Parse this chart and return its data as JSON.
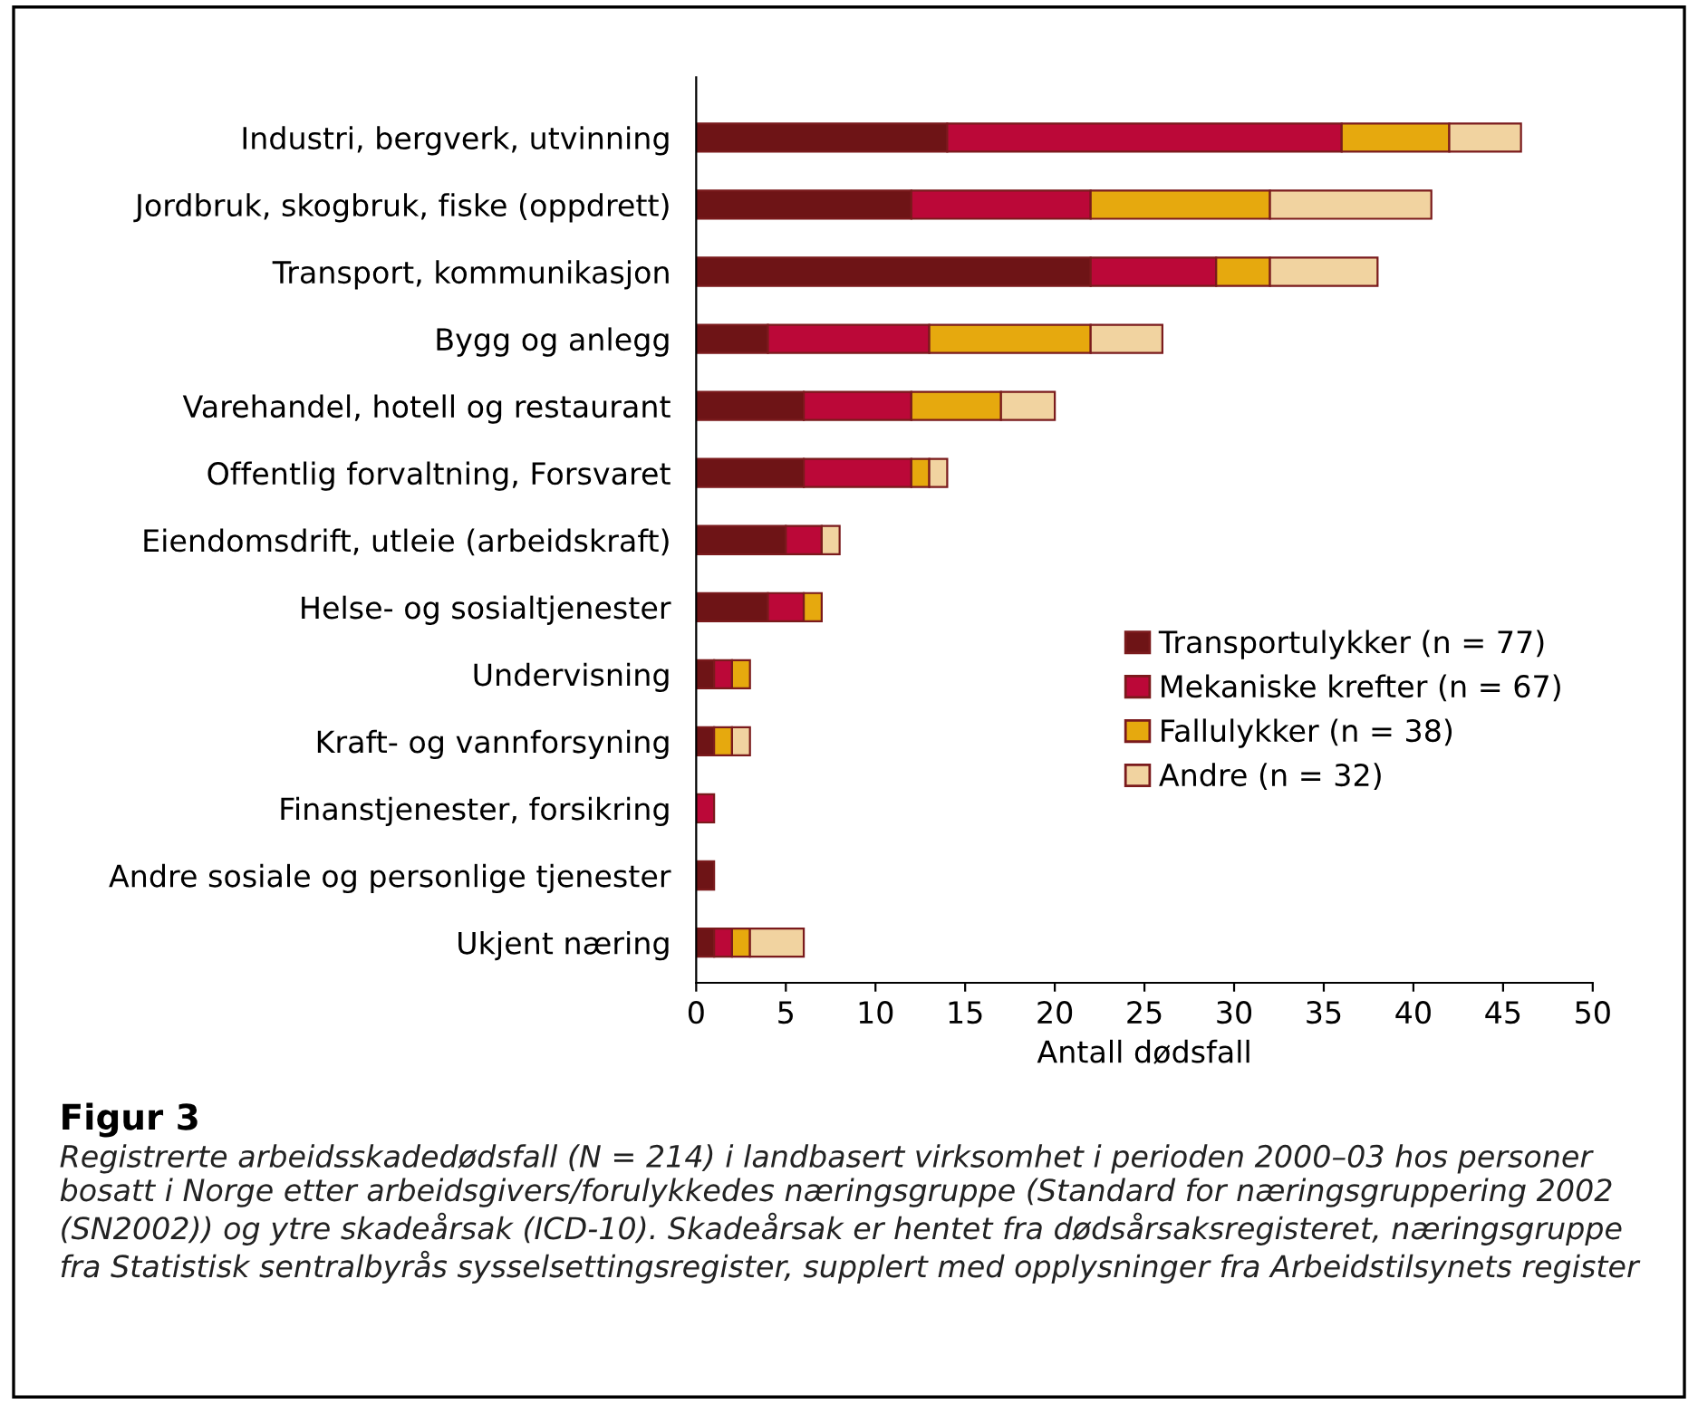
{
  "chart_data": {
    "type": "bar",
    "orientation": "horizontal",
    "stacked": true,
    "categories": [
      "Industri, bergverk, utvinning",
      "Jordbruk, skogbruk, fiske (oppdrett)",
      "Transport, kommunikasjon",
      "Bygg og anlegg",
      "Varehandel, hotell og restaurant",
      "Offentlig forvaltning, Forsvaret",
      "Eiendomsdrift, utleie (arbeidskraft)",
      "Helse- og sosialtjenester",
      "Undervisning",
      "Kraft- og vannforsyning",
      "Finanstjenester, forsikring",
      "Andre sosiale og personlige tjenester",
      "Ukjent næring"
    ],
    "series": [
      {
        "name": "Transportulykker (n = 77)",
        "color": "#6e1416",
        "values": [
          14,
          12,
          22,
          4,
          6,
          6,
          5,
          4,
          1,
          1,
          0,
          1,
          1
        ]
      },
      {
        "name": "Mekaniske krefter (n = 67)",
        "color": "#bb0838",
        "values": [
          22,
          10,
          7,
          9,
          6,
          6,
          2,
          2,
          1,
          0,
          1,
          0,
          1
        ]
      },
      {
        "name": "Fallulykker (n = 38)",
        "color": "#e6a90e",
        "values": [
          6,
          10,
          3,
          9,
          5,
          1,
          0,
          1,
          1,
          1,
          0,
          0,
          1
        ]
      },
      {
        "name": "Andre (n = 32)",
        "color": "#f1d3a0",
        "values": [
          4,
          9,
          6,
          4,
          3,
          1,
          1,
          0,
          0,
          1,
          0,
          0,
          3
        ]
      }
    ],
    "xlabel": "Antall dødsfall",
    "xlim": [
      0,
      50
    ],
    "xticks": [
      0,
      5,
      10,
      15,
      20,
      25,
      30,
      35,
      40,
      45,
      50
    ],
    "grid": false,
    "legend": "right",
    "annotations": [
      "Figur 3",
      "Registrerte arbeidsskadedødsfall (N = 214) i landbasert virksomhet i perioden 2000–03 hos personer bosatt i Norge etter arbeidsgivers/forulykkedes næringsgruppe (Standard for næringsgruppering 2002 (SN2002)) og ytre skadeårsak (ICD-10). Skadeårsak er hentet fra dødsårsaksregisteret, næringsgruppe fra Statistisk sentralbyrås sysselsettingsregister, supplert med opplysninger fra Arbeidstilsynets register"
    ]
  }
}
